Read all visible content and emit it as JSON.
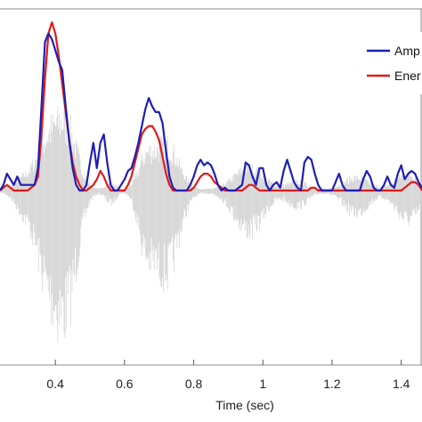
{
  "chart_data": {
    "type": "line",
    "title": "",
    "xlabel": "Time (sec)",
    "ylabel": "",
    "xlim": [
      0.24,
      1.46
    ],
    "ylim": [
      -0.62,
      0.61
    ],
    "grid": false,
    "legend_position": "top-right",
    "x_ticks": [
      0.4,
      0.6,
      0.8,
      1,
      1.2,
      1.4
    ],
    "x_tick_labels": [
      "0.4",
      "0.6",
      "0.8",
      "1",
      "1.2",
      "1.4"
    ],
    "series": [
      {
        "name": "Amplitude",
        "legend_label": "Amp",
        "color": "#1f1fb4",
        "x": [
          0.24,
          0.25,
          0.26,
          0.27,
          0.28,
          0.29,
          0.3,
          0.31,
          0.32,
          0.33,
          0.34,
          0.35,
          0.36,
          0.37,
          0.38,
          0.39,
          0.4,
          0.41,
          0.42,
          0.43,
          0.44,
          0.45,
          0.46,
          0.47,
          0.48,
          0.49,
          0.5,
          0.51,
          0.52,
          0.53,
          0.54,
          0.55,
          0.56,
          0.57,
          0.58,
          0.59,
          0.6,
          0.61,
          0.62,
          0.63,
          0.64,
          0.65,
          0.66,
          0.67,
          0.68,
          0.69,
          0.7,
          0.71,
          0.72,
          0.73,
          0.74,
          0.75,
          0.76,
          0.77,
          0.78,
          0.79,
          0.8,
          0.81,
          0.82,
          0.83,
          0.84,
          0.85,
          0.86,
          0.87,
          0.88,
          0.89,
          0.9,
          0.91,
          0.92,
          0.93,
          0.94,
          0.95,
          0.96,
          0.97,
          0.98,
          0.99,
          1.0,
          1.01,
          1.02,
          1.03,
          1.04,
          1.05,
          1.06,
          1.07,
          1.08,
          1.09,
          1.1,
          1.11,
          1.12,
          1.13,
          1.14,
          1.15,
          1.16,
          1.17,
          1.18,
          1.19,
          1.2,
          1.21,
          1.22,
          1.23,
          1.24,
          1.25,
          1.26,
          1.27,
          1.28,
          1.29,
          1.3,
          1.31,
          1.32,
          1.33,
          1.34,
          1.35,
          1.36,
          1.37,
          1.38,
          1.39,
          1.4,
          1.41,
          1.42,
          1.43,
          1.44,
          1.45,
          1.46
        ],
        "values": [
          0.06,
          0.08,
          0.03,
          0.02,
          0.07,
          0.05,
          0.0,
          0.02,
          0.03,
          0.08,
          0.05,
          0.08,
          0.3,
          0.46,
          0.52,
          0.48,
          0.45,
          0.39,
          0.31,
          0.26,
          0.18,
          0.08,
          0.04,
          0.01,
          0.04,
          0.01,
          0.03,
          0.15,
          0.09,
          0.03,
          0.16,
          0.14,
          0.05,
          0.0,
          0.0,
          0.02,
          0.03,
          0.07,
          0.12,
          0.16,
          0.19,
          0.22,
          0.28,
          0.33,
          0.31,
          0.27,
          0.25,
          0.21,
          0.15,
          0.06,
          0.03,
          0.02,
          0.0,
          0.0,
          0.0,
          0.02,
          0.05,
          0.09,
          0.1,
          0.07,
          0.08,
          0.07,
          0.02,
          0.0,
          0.0,
          0.0,
          0.0,
          0.0,
          0.0,
          0.01,
          0.02,
          0.08,
          0.04,
          0.02,
          0.05,
          0.08,
          0.07,
          0.03,
          0.01,
          0.02,
          0.03,
          0.01,
          0.02,
          0.0,
          0.01,
          0.06,
          0.01,
          0.0,
          0.09,
          0.12,
          0.09,
          0.03,
          0.01,
          0.0,
          0.0,
          0.0,
          0.0,
          0.0,
          0.0,
          0.0,
          0.0,
          0.0,
          0.0,
          0.0,
          0.0,
          0.0,
          0.0,
          0.01,
          0.0,
          0.01,
          0.0,
          0.0,
          0.01,
          0.0,
          0.02,
          0.04,
          0.01,
          0.02,
          0.01,
          0.02,
          0.04,
          0.03,
          0.0
        ],
        "values_curve": [
          0.0,
          0.02,
          0.06,
          0.04,
          0.02,
          0.05,
          0.02,
          0.02,
          0.02,
          0.02,
          0.02,
          0.08,
          0.3,
          0.53,
          0.56,
          0.54,
          0.5,
          0.46,
          0.43,
          0.3,
          0.18,
          0.08,
          0.02,
          0.0,
          0.0,
          0.02,
          0.1,
          0.17,
          0.08,
          0.17,
          0.2,
          0.1,
          0.02,
          0.0,
          0.0,
          0.02,
          0.04,
          0.07,
          0.08,
          0.12,
          0.17,
          0.23,
          0.29,
          0.33,
          0.3,
          0.28,
          0.28,
          0.24,
          0.14,
          0.05,
          0.01,
          0.0,
          0.0,
          0.0,
          0.0,
          0.02,
          0.05,
          0.09,
          0.11,
          0.09,
          0.1,
          0.09,
          0.06,
          0.02,
          0.0,
          0.01,
          0.0,
          0.0,
          0.0,
          0.01,
          0.02,
          0.1,
          0.09,
          0.05,
          0.02,
          0.08,
          0.08,
          0.02,
          0.0,
          0.02,
          0.03,
          0.01,
          0.07,
          0.11,
          0.07,
          0.03,
          0.01,
          0.0,
          0.1,
          0.12,
          0.11,
          0.06,
          0.02,
          0.0,
          0.0,
          0.0,
          0.0,
          0.03,
          0.06,
          0.02,
          0.0,
          0.0,
          0.0,
          0.0,
          0.0,
          0.04,
          0.07,
          0.05,
          0.01,
          0.0,
          0.0,
          0.02,
          0.05,
          0.02,
          0.01,
          0.06,
          0.09,
          0.04,
          0.06,
          0.07,
          0.06,
          0.03,
          0.01
        ]
      },
      {
        "name": "Energy",
        "legend_label": "Ener",
        "color": "#e01b1b",
        "x": [
          0.24,
          0.25,
          0.26,
          0.27,
          0.28,
          0.29,
          0.3,
          0.31,
          0.32,
          0.33,
          0.34,
          0.35,
          0.36,
          0.37,
          0.38,
          0.39,
          0.4,
          0.41,
          0.42,
          0.43,
          0.44,
          0.45,
          0.46,
          0.47,
          0.48,
          0.49,
          0.5,
          0.51,
          0.52,
          0.53,
          0.54,
          0.55,
          0.56,
          0.57,
          0.58,
          0.59,
          0.6,
          0.61,
          0.62,
          0.63,
          0.64,
          0.65,
          0.66,
          0.67,
          0.68,
          0.69,
          0.7,
          0.71,
          0.72,
          0.73,
          0.74,
          0.75,
          0.76,
          0.77,
          0.78,
          0.79,
          0.8,
          0.81,
          0.82,
          0.83,
          0.84,
          0.85,
          0.86,
          0.87,
          0.88,
          0.89,
          0.9,
          0.91,
          0.92,
          0.93,
          0.94,
          0.95,
          0.96,
          0.97,
          0.98,
          0.99,
          1.0,
          1.01,
          1.02,
          1.03,
          1.04,
          1.05,
          1.06,
          1.07,
          1.08,
          1.09,
          1.1,
          1.11,
          1.12,
          1.13,
          1.14,
          1.15,
          1.16,
          1.17,
          1.18,
          1.19,
          1.2,
          1.21,
          1.22,
          1.23,
          1.24,
          1.25,
          1.26,
          1.27,
          1.28,
          1.29,
          1.3,
          1.31,
          1.32,
          1.33,
          1.34,
          1.35,
          1.36,
          1.37,
          1.38,
          1.39,
          1.4,
          1.41,
          1.42,
          1.43,
          1.44,
          1.45,
          1.46
        ],
        "values": [
          0.0,
          0.01,
          0.02,
          0.01,
          0.0,
          0.0,
          0.0,
          0.0,
          0.0,
          0.01,
          0.02,
          0.05,
          0.2,
          0.4,
          0.56,
          0.6,
          0.56,
          0.48,
          0.38,
          0.28,
          0.18,
          0.1,
          0.05,
          0.02,
          0.0,
          0.0,
          0.01,
          0.02,
          0.04,
          0.07,
          0.05,
          0.02,
          0.0,
          0.0,
          0.0,
          0.0,
          0.0,
          0.02,
          0.05,
          0.1,
          0.15,
          0.2,
          0.22,
          0.23,
          0.23,
          0.21,
          0.18,
          0.12,
          0.06,
          0.02,
          0.0,
          0.0,
          0.0,
          0.0,
          0.0,
          0.0,
          0.01,
          0.03,
          0.05,
          0.06,
          0.06,
          0.05,
          0.03,
          0.02,
          0.01,
          0.0,
          0.0,
          0.0,
          0.0,
          0.0,
          0.0,
          0.01,
          0.02,
          0.02,
          0.01,
          0.0,
          0.0,
          0.0,
          0.0,
          0.0,
          0.0,
          0.0,
          0.0,
          0.0,
          0.0,
          0.0,
          0.0,
          0.0,
          0.0,
          0.0,
          0.01,
          0.01,
          0.0,
          0.0,
          0.0,
          0.0,
          0.0,
          0.0,
          0.0,
          0.0,
          0.0,
          0.0,
          0.0,
          0.0,
          0.0,
          0.0,
          0.0,
          0.0,
          0.0,
          0.0,
          0.0,
          0.0,
          0.0,
          0.0,
          0.0,
          0.0,
          0.0,
          0.01,
          0.02,
          0.03,
          0.03,
          0.02,
          0.0
        ]
      }
    ]
  }
}
